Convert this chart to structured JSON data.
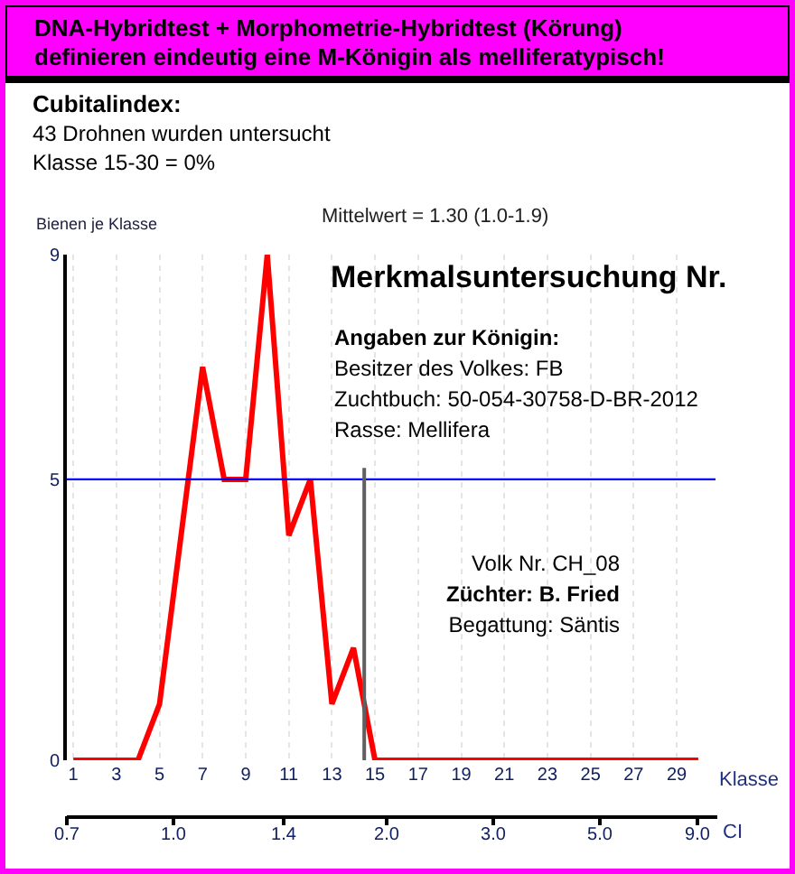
{
  "chart_data": {
    "type": "line",
    "title": "DNA-Hybridtest + Morphometrie-Hybridtest (Körung)\ndefinieren eindeutig eine M-Königin als melliferatypisch!",
    "ylabel": "Bienen je Klasse",
    "xlabel": "Klasse",
    "x2label": "CI",
    "annotations": [
      "Cubitalindex:",
      "43  Drohnen wurden untersucht",
      "Klasse 15-30 = 0%",
      "Mittelwert = 1.30 (1.0-1.9)",
      "Merkmalsuntersuchung Nr.",
      "Angaben zur Königin:",
      "Besitzer des Volkes: FB",
      "Zuchtbuch: 50-054-30758-D-BR-2012",
      "Rasse: Mellifera",
      "Volk Nr. CH_08",
      "Züchter: B. Fried",
      "Begattung: Säntis",
      "0.7",
      "1.0",
      "1.4",
      "2.0",
      "3.0",
      "5.0",
      "9.0"
    ],
    "x": [
      1,
      2,
      3,
      4,
      5,
      6,
      7,
      8,
      9,
      10,
      11,
      12,
      13,
      14,
      15,
      16,
      17,
      18,
      19,
      20,
      21,
      22,
      23,
      24,
      25,
      26,
      27,
      28,
      29,
      30
    ],
    "series": [
      {
        "color": "#ff0000",
        "values": [
          0,
          0,
          0,
          0,
          1,
          4,
          7,
          5,
          5,
          9,
          4,
          5,
          1,
          2,
          0,
          0,
          0,
          0,
          0,
          0,
          0,
          0,
          0,
          0,
          0,
          0,
          0,
          0,
          0,
          0
        ]
      }
    ],
    "xlim": [
      0.7,
      30.8
    ],
    "xticks": [
      1,
      3,
      5,
      7,
      9,
      11,
      13,
      15,
      17,
      19,
      21,
      23,
      25,
      27,
      29
    ],
    "ylim": [
      0,
      9
    ],
    "yticks": [
      0,
      5,
      9
    ],
    "ref_lines": [
      {
        "axis": "y",
        "value": 5,
        "color": "#0000ff"
      },
      {
        "axis": "x",
        "value": 14.5,
        "color": "#606060"
      }
    ],
    "grid": true,
    "marker": "none",
    "line_style": "solid"
  }
}
